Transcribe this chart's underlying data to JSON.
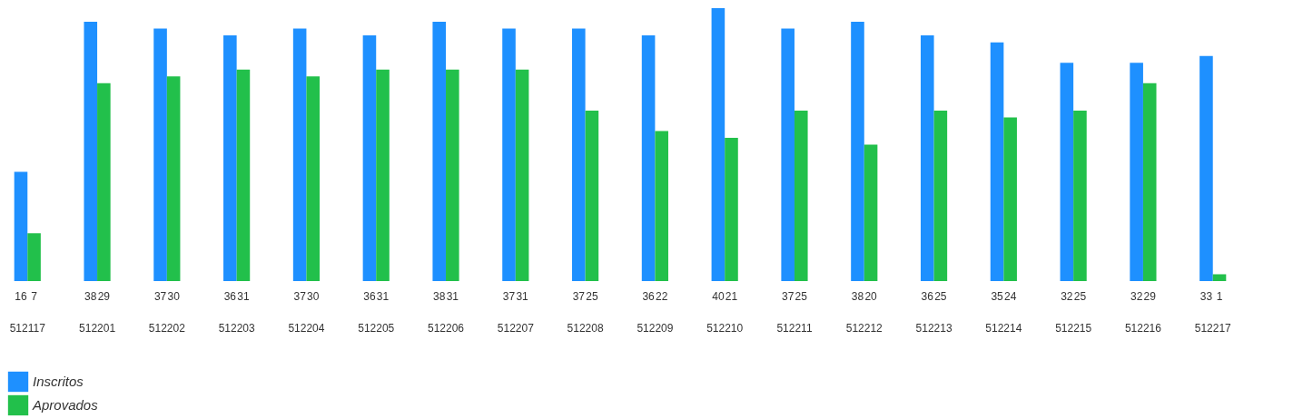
{
  "chart_data": {
    "type": "bar",
    "categories": [
      "512117",
      "512201",
      "512202",
      "512203",
      "512204",
      "512205",
      "512206",
      "512207",
      "512208",
      "512209",
      "512210",
      "512211",
      "512212",
      "512213",
      "512214",
      "512215",
      "512216",
      "512217"
    ],
    "series": [
      {
        "name": "Inscritos",
        "color": "#1e90ff",
        "values": [
          16,
          38,
          37,
          36,
          37,
          36,
          38,
          37,
          37,
          36,
          40,
          37,
          38,
          36,
          35,
          32,
          32,
          33
        ]
      },
      {
        "name": "Aprovados",
        "color": "#22c04b",
        "values": [
          7,
          29,
          30,
          31,
          30,
          31,
          31,
          31,
          25,
          22,
          21,
          25,
          20,
          25,
          24,
          25,
          29,
          1
        ]
      }
    ],
    "data_labels": true,
    "legend": "bottom left"
  }
}
